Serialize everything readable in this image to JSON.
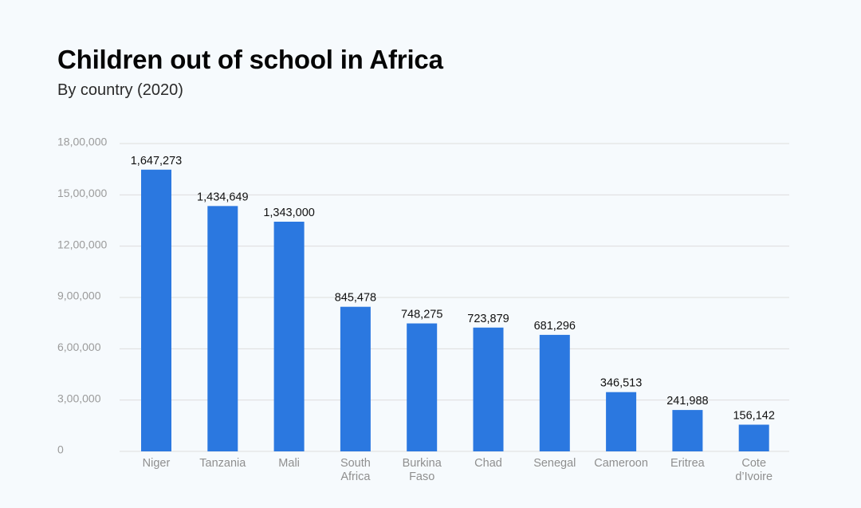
{
  "header": {
    "title": "Children out of school in Africa",
    "subtitle": "By country (2020)"
  },
  "chart_data": {
    "type": "bar",
    "title": "Children out of school in Africa",
    "subtitle": "By country (2020)",
    "xlabel": "",
    "ylabel": "",
    "categories": [
      "Niger",
      "Tanzania",
      "Mali",
      "South Africa",
      "Burkina Faso",
      "Chad",
      "Senegal",
      "Cameroon",
      "Eritrea",
      "Cote d'Ivoire"
    ],
    "category_lines": [
      [
        "Niger"
      ],
      [
        "Tanzania"
      ],
      [
        "Mali"
      ],
      [
        "South",
        "Africa"
      ],
      [
        "Burkina",
        "Faso"
      ],
      [
        "Chad"
      ],
      [
        "Senegal"
      ],
      [
        "Cameroon"
      ],
      [
        "Eritrea"
      ],
      [
        "Cote",
        "d’Ivoire"
      ]
    ],
    "values": [
      1647273,
      1434649,
      1343000,
      845478,
      748275,
      723879,
      681296,
      346513,
      241988,
      156142
    ],
    "value_labels": [
      "1,647,273",
      "1,434,649",
      "1,343,000",
      "845,478",
      "748,275",
      "723,879",
      "681,296",
      "346,513",
      "241,988",
      "156,142"
    ],
    "ylim": [
      0,
      1800000
    ],
    "yticks": [
      0,
      300000,
      600000,
      900000,
      1200000,
      1500000,
      1800000
    ],
    "ytick_labels": [
      "0",
      "3,00,000",
      "6,00,000",
      "9,00,000",
      "12,00,000",
      "15,00,000",
      "18,00,000"
    ],
    "grid": true,
    "legend": "none",
    "colors": {
      "bar": "#2b78e0",
      "grid": "#dddddd",
      "background": "#f6fafd"
    }
  }
}
